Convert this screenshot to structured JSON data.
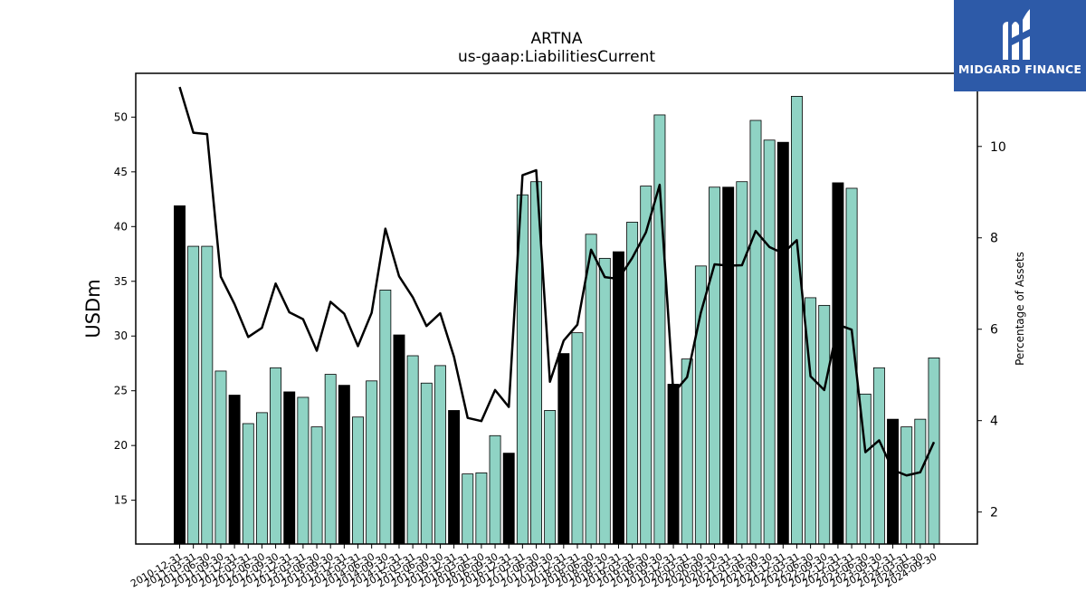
{
  "logo": {
    "text": "MIDGARD FINANCE",
    "icon": "midgard-logo-icon",
    "bg_color": "#2d5aa8"
  },
  "chart_data": {
    "type": "bar",
    "title": "ARTNA",
    "subtitle": "us-gaap:LiabilitiesCurrent",
    "ylabel": "USDm",
    "y2label": "Percentage of Assets",
    "ylim": [
      11,
      54
    ],
    "y2lim": [
      1.3,
      11.6
    ],
    "yticks": [
      15,
      20,
      25,
      30,
      35,
      40,
      45,
      50
    ],
    "y2ticks": [
      2,
      4,
      6,
      8,
      10
    ],
    "colors": {
      "bar": "#8fd3c4",
      "highlight": "#000000",
      "line": "#000000"
    },
    "categories": [
      "2010-12-31",
      "2011-03-31",
      "2011-06-30",
      "2011-09-30",
      "2011-12-31",
      "2012-03-31",
      "2012-06-30",
      "2012-09-30",
      "2012-12-31",
      "2013-03-31",
      "2013-06-30",
      "2013-09-30",
      "2013-12-31",
      "2014-03-31",
      "2014-06-30",
      "2014-09-30",
      "2014-12-31",
      "2015-03-31",
      "2015-06-30",
      "2015-09-30",
      "2015-12-31",
      "2016-03-31",
      "2016-06-30",
      "2016-09-30",
      "2016-12-31",
      "2017-03-31",
      "2017-06-30",
      "2017-09-30",
      "2017-12-31",
      "2018-03-31",
      "2018-06-30",
      "2018-09-30",
      "2018-12-31",
      "2019-03-31",
      "2019-06-30",
      "2019-09-30",
      "2019-12-31",
      "2020-03-31",
      "2020-06-30",
      "2020-09-30",
      "2020-12-31",
      "2021-03-31",
      "2021-06-30",
      "2021-09-30",
      "2021-12-31",
      "2022-03-31",
      "2022-06-30",
      "2022-09-30",
      "2022-12-31",
      "2023-03-31",
      "2023-06-30",
      "2023-09-30",
      "2023-12-31",
      "2024-03-31",
      "2024-06-30",
      "2024-09-30"
    ],
    "xtick_labels": [
      "2010-12-31",
      "2011-03-31",
      "2011-06-30",
      "2011-09-30",
      "2011-12-31",
      "2012-03-31",
      "2012-06-30",
      "2012-09-30",
      "2012-12-31",
      "2013-03-31",
      "2013-06-30",
      "2013-09-30",
      "2013-12-31",
      "2014-03-31",
      "2014-06-30",
      "2014-09-30",
      "2014-12-31",
      "2015-03-31",
      "2015-06-30",
      "2015-09-30",
      "2015-12-31",
      "2016-03-31",
      "2016-06-30",
      "2016-09-30",
      "2016-12-31",
      "2017-03-31",
      "2017-06-30",
      "2017-09-30",
      "2017-12-31",
      "2018-03-31",
      "2018-06-30",
      "2018-09-30",
      "2018-12-31",
      "2019-03-31",
      "2019-06-30",
      "2019-09-30",
      "2019-12-31",
      "2020-03-31",
      "2020-06-30",
      "2020-09-30",
      "2020-12-31",
      "2021-03-31",
      "2021-06-30",
      "2021-09-30",
      "2021-12-31",
      "2022-03-31",
      "2022-06-30",
      "2022-09-30",
      "2022-12-31",
      "2023-03-31",
      "2023-06-30",
      "2023-09-30",
      "2023-12-31",
      "2024-03-31",
      "2024-06-30",
      "2024-09-30"
    ],
    "series": [
      {
        "axis": "left",
        "type": "bar",
        "values": [
          41.9,
          38.2,
          38.2,
          26.8,
          24.6,
          22.0,
          23.0,
          27.1,
          24.9,
          24.4,
          21.7,
          26.5,
          25.5,
          22.6,
          25.9,
          34.2,
          30.1,
          28.2,
          25.7,
          27.3,
          23.2,
          17.4,
          17.5,
          20.9,
          19.3,
          42.9,
          44.1,
          23.2,
          28.4,
          30.3,
          39.3,
          37.1,
          37.7,
          40.4,
          43.7,
          50.2,
          25.6,
          27.9,
          36.4,
          43.6,
          43.6,
          44.1,
          49.7,
          47.9,
          47.7,
          51.9,
          33.5,
          32.8,
          44.0,
          43.5,
          24.7,
          27.1,
          22.4,
          21.7,
          22.4,
          28.0
        ],
        "highlighted": [
          true,
          false,
          false,
          false,
          true,
          false,
          false,
          false,
          true,
          false,
          false,
          false,
          true,
          false,
          false,
          false,
          true,
          false,
          false,
          false,
          true,
          false,
          false,
          false,
          true,
          false,
          false,
          false,
          true,
          false,
          false,
          false,
          true,
          false,
          false,
          false,
          true,
          false,
          false,
          false,
          true,
          false,
          false,
          false,
          true,
          false,
          false,
          false,
          true,
          false,
          false,
          false,
          true,
          false,
          false,
          false
        ]
      },
      {
        "axis": "right",
        "type": "line",
        "values": [
          11.3,
          10.3,
          10.27,
          7.15,
          6.55,
          5.83,
          6.03,
          7.0,
          6.37,
          6.22,
          5.53,
          6.6,
          6.34,
          5.63,
          6.36,
          8.2,
          7.16,
          6.7,
          6.07,
          6.35,
          5.4,
          4.06,
          3.99,
          4.67,
          4.3,
          9.37,
          9.48,
          4.85,
          5.75,
          6.1,
          7.74,
          7.14,
          7.1,
          7.56,
          8.12,
          9.16,
          4.6,
          4.95,
          6.36,
          7.42,
          7.39,
          7.4,
          8.15,
          7.8,
          7.66,
          7.95,
          4.97,
          4.67,
          6.1,
          5.99,
          3.31,
          3.57,
          2.92,
          2.8,
          2.87,
          3.53
        ]
      }
    ]
  }
}
